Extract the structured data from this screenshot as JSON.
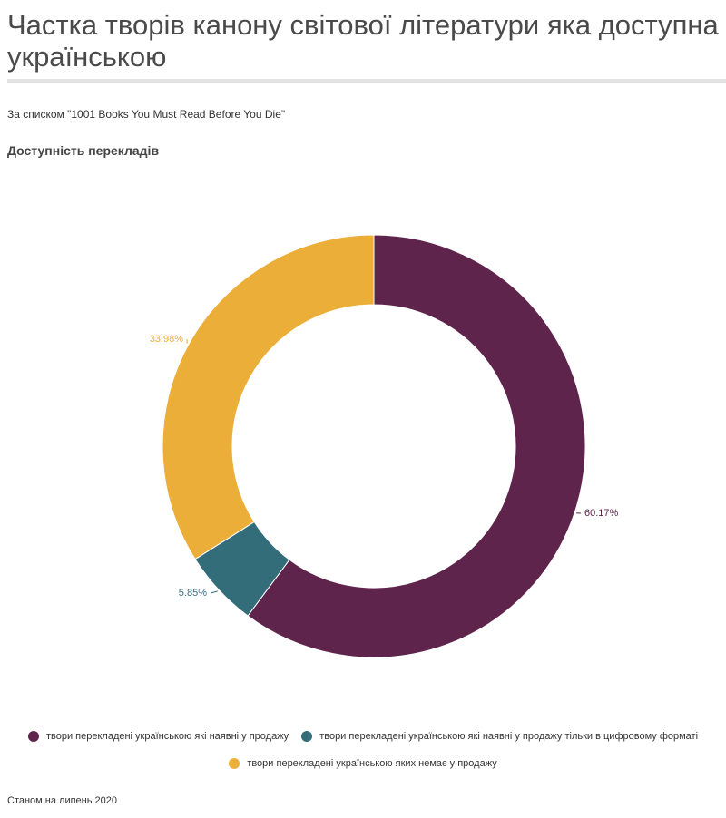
{
  "header": {
    "title": "Частка творів канону світової літератури яка доступна українською",
    "subtitle": "За списком \"1001 Books You Must Read Before You Die\"",
    "chart_heading": "Доступність перекладів"
  },
  "footer": {
    "note": "Станом на липень 2020"
  },
  "chart_data": {
    "type": "pie",
    "donut": true,
    "title": "Доступність перекладів",
    "legend_position": "bottom",
    "series": [
      {
        "name": "твори перекладені українською які наявні у продажу",
        "value": 60.17,
        "label": "60.17%",
        "color": "#5e244c"
      },
      {
        "name": "твори перекладені українською які наявні у продажу тільки в цифровому форматі",
        "value": 5.85,
        "label": "5.85%",
        "color": "#336d7a"
      },
      {
        "name": "твори перекладені українською яких немає у продажу",
        "value": 33.98,
        "label": "33.98%",
        "color": "#ebaf39"
      }
    ]
  }
}
